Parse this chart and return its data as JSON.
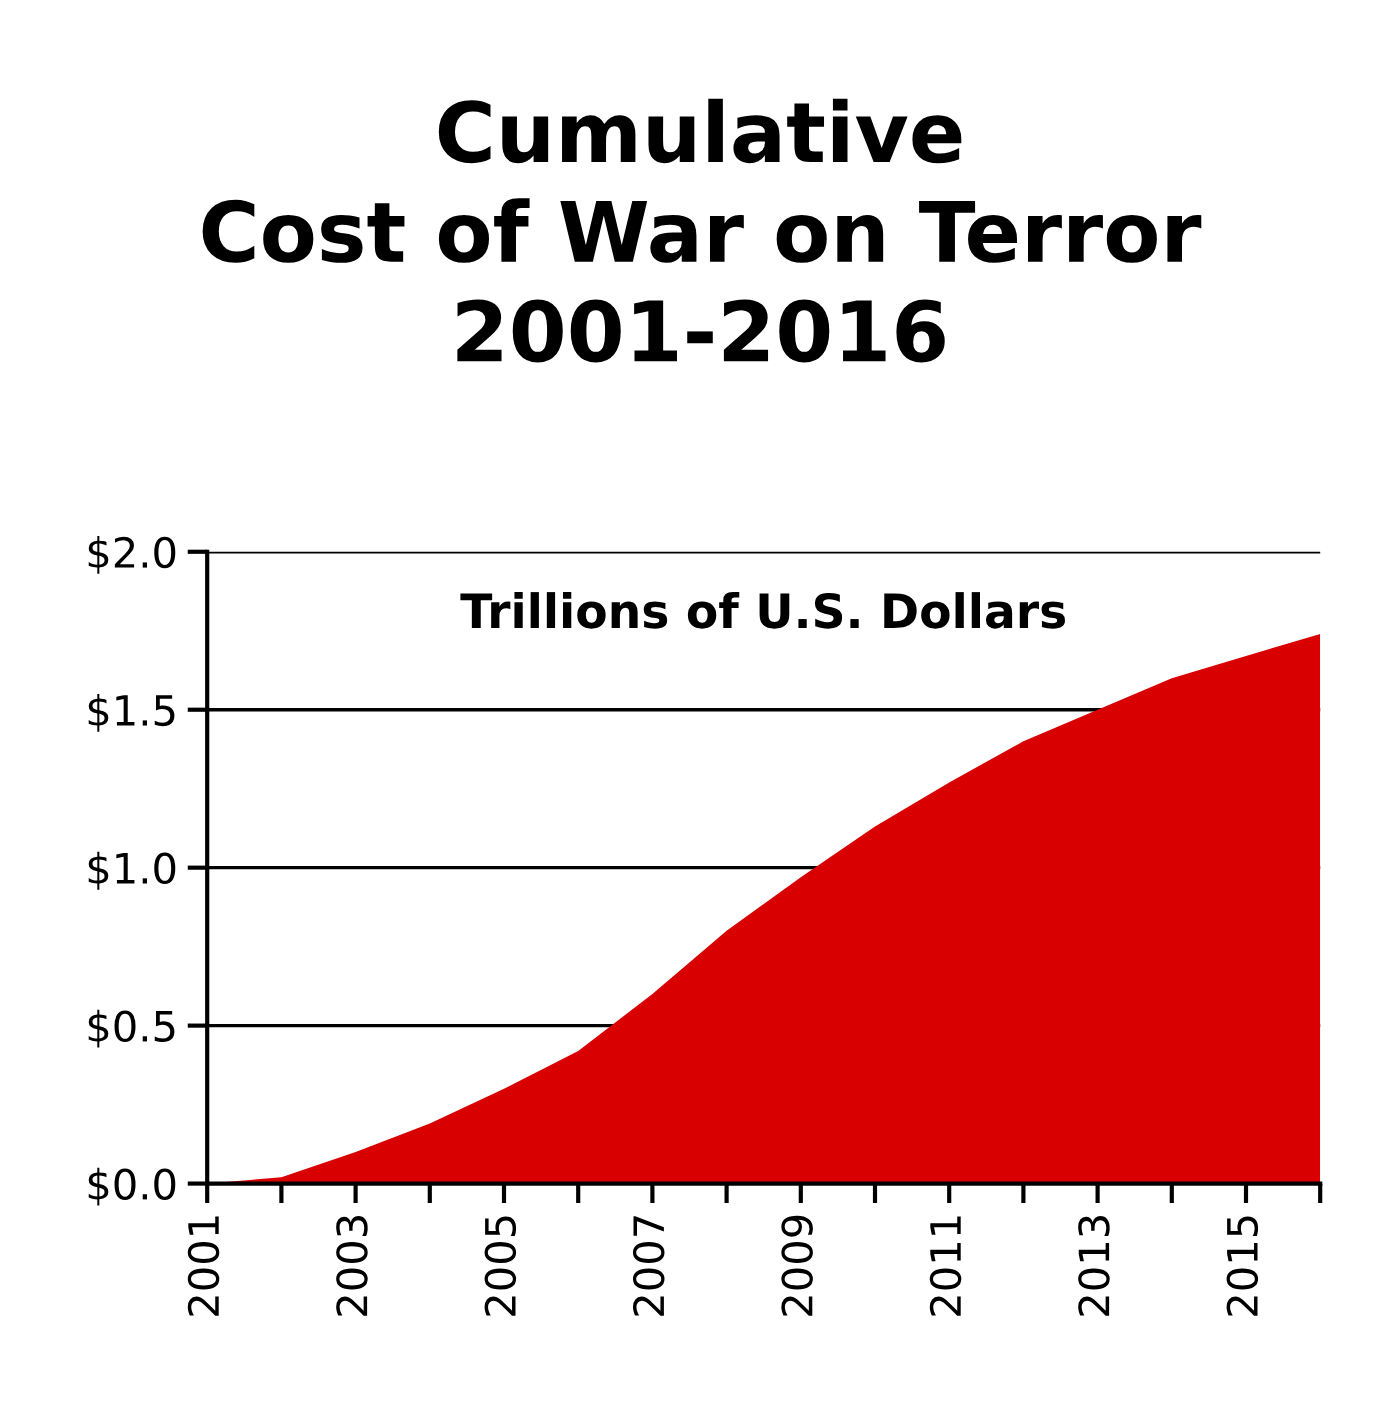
{
  "chart_data": {
    "type": "area",
    "title": "Cumulative\nCost of War on Terror\n2001-2016",
    "subtitle": "Trillions of U.S. Dollars",
    "x": [
      2001,
      2002,
      2003,
      2004,
      2005,
      2006,
      2007,
      2008,
      2009,
      2010,
      2011,
      2012,
      2013,
      2014,
      2015,
      2016
    ],
    "series": [
      {
        "color": "#d80000",
        "values": [
          0,
          0.02,
          0.1,
          0.19,
          0.3,
          0.42,
          0.6,
          0.8,
          0.97,
          1.13,
          1.27,
          1.4,
          1.5,
          1.6,
          1.67,
          1.74
        ]
      }
    ],
    "xlim": [
      2001,
      2016
    ],
    "xticks": [
      {
        "value": 2001,
        "label": "2001"
      },
      {
        "value": 2002,
        "label": null
      },
      {
        "value": 2003,
        "label": "2003"
      },
      {
        "value": 2004,
        "label": null
      },
      {
        "value": 2005,
        "label": "2005"
      },
      {
        "value": 2006,
        "label": null
      },
      {
        "value": 2007,
        "label": "2007"
      },
      {
        "value": 2008,
        "label": null
      },
      {
        "value": 2009,
        "label": "2009"
      },
      {
        "value": 2010,
        "label": null
      },
      {
        "value": 2011,
        "label": "2011"
      },
      {
        "value": 2012,
        "label": null
      },
      {
        "value": 2013,
        "label": "2013"
      },
      {
        "value": 2014,
        "label": null
      },
      {
        "value": 2015,
        "label": "2015"
      },
      {
        "value": 2016,
        "label": null
      }
    ],
    "ylim": [
      0,
      2.0
    ],
    "yticks": [
      {
        "value": 0,
        "label": "$0.0"
      },
      {
        "value": 0.5,
        "label": "$0.5"
      },
      {
        "value": 1.0,
        "label": "$1.0"
      },
      {
        "value": 1.5,
        "label": "$1.5"
      },
      {
        "value": 2.0,
        "label": "$2.0"
      }
    ],
    "grid": "y",
    "legend": false
  }
}
